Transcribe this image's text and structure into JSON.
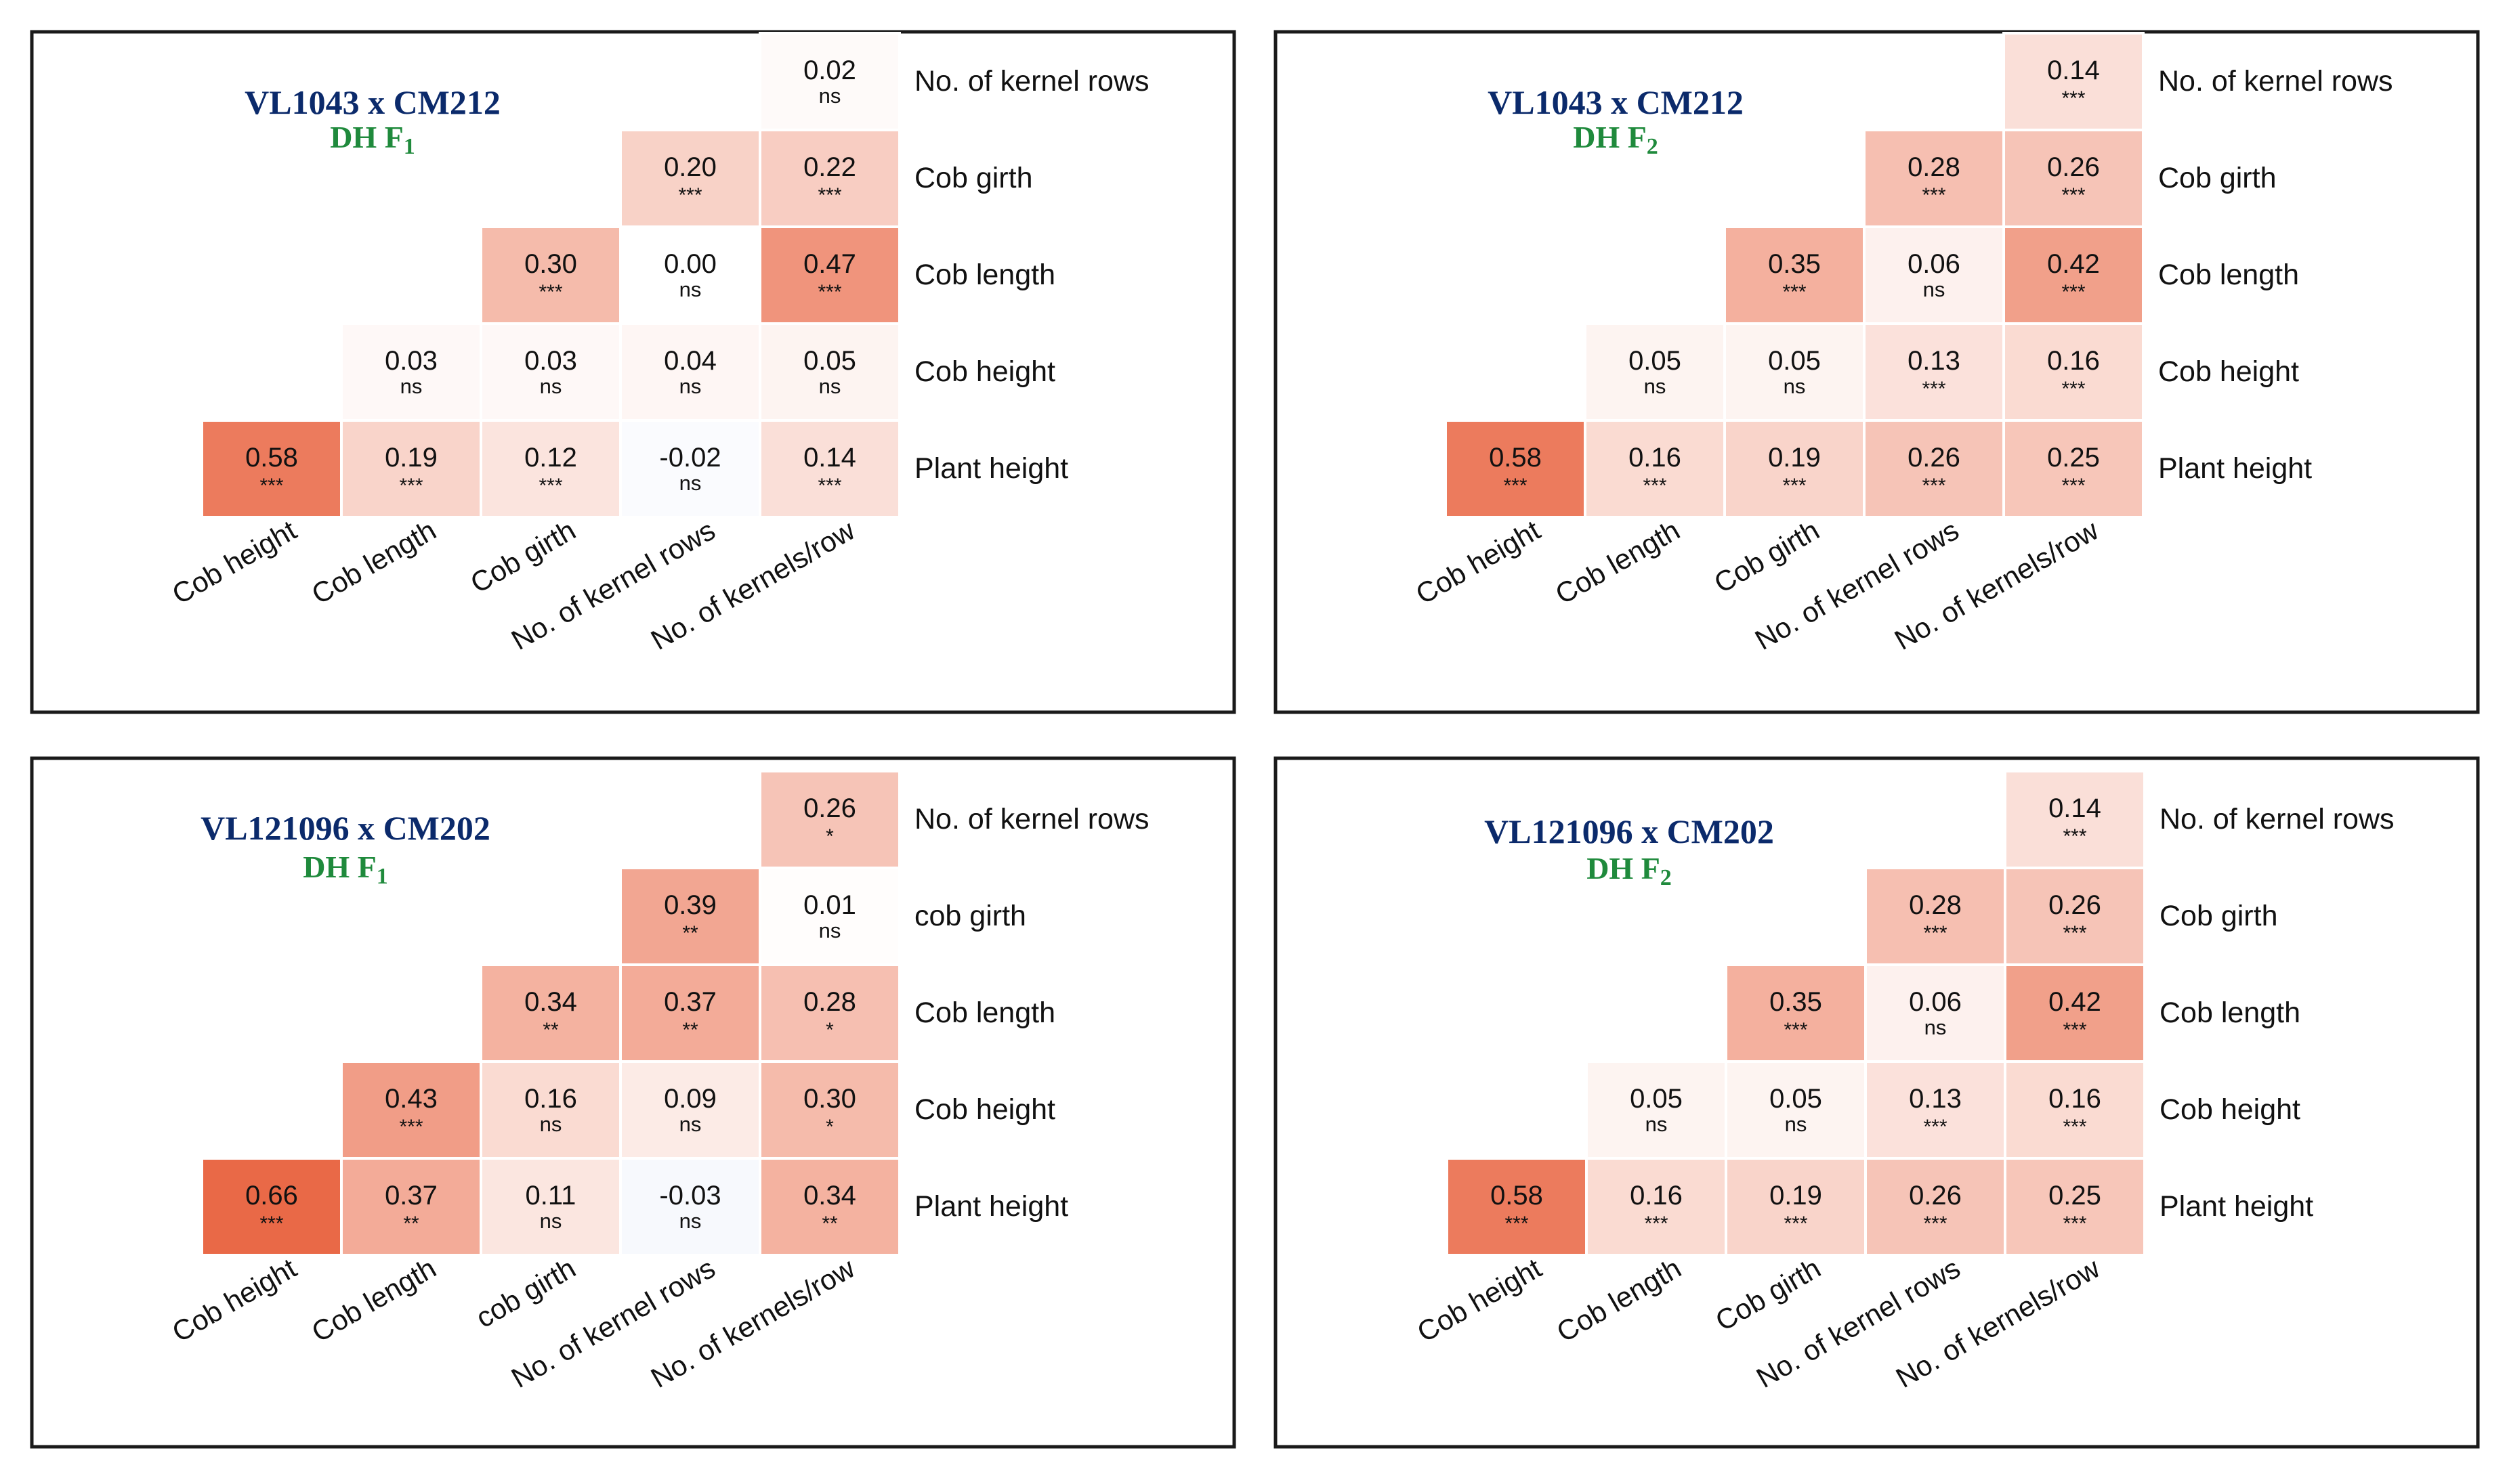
{
  "colors": {
    "title": "#0b2a6b",
    "subtitle": "#1f8a3c",
    "text": "#111111",
    "border": "#1a1a1a",
    "positive": "#e8603c",
    "negative": "#4a6fd1"
  },
  "chart_data": [
    {
      "type": "heatmap",
      "title": "VL1043 x CM212",
      "subtitle_main": "DH F",
      "subtitle_sub": "1",
      "row_labels": [
        "No. of kernel rows",
        "Cob girth",
        "Cob length",
        "Cob height",
        "Plant height"
      ],
      "col_labels": [
        "Cob height",
        "Cob length",
        "Cob girth",
        "No. of kernel rows",
        "No. of kernels/row"
      ],
      "values": [
        [
          null,
          null,
          null,
          null,
          0.02
        ],
        [
          null,
          null,
          null,
          0.2,
          0.22
        ],
        [
          null,
          null,
          0.3,
          0.0,
          0.47
        ],
        [
          null,
          0.03,
          0.03,
          0.04,
          0.05
        ],
        [
          0.58,
          0.19,
          0.12,
          -0.02,
          0.14
        ]
      ],
      "labels": [
        [
          null,
          null,
          null,
          null,
          "0.02"
        ],
        [
          null,
          null,
          null,
          "0.20",
          "0.22"
        ],
        [
          null,
          null,
          "0.30",
          "0.00",
          "0.47"
        ],
        [
          null,
          "0.03",
          "0.03",
          "0.04",
          "0.05"
        ],
        [
          "0.58",
          "0.19",
          "0.12",
          "-0.02",
          "0.14"
        ]
      ],
      "significance": [
        [
          null,
          null,
          null,
          null,
          "ns"
        ],
        [
          null,
          null,
          null,
          "***",
          "***"
        ],
        [
          null,
          null,
          "***",
          "ns",
          "***"
        ],
        [
          null,
          "ns",
          "ns",
          "ns",
          "ns"
        ],
        [
          "***",
          "***",
          "***",
          "ns",
          "***"
        ]
      ]
    },
    {
      "type": "heatmap",
      "title": "VL1043 x CM212",
      "subtitle_main": "DH F",
      "subtitle_sub": "2",
      "row_labels": [
        "No. of kernel rows",
        "Cob girth",
        "Cob length",
        "Cob height",
        "Plant height"
      ],
      "col_labels": [
        "Cob height",
        "Cob length",
        "Cob girth",
        "No. of kernel rows",
        "No. of kernels/row"
      ],
      "values": [
        [
          null,
          null,
          null,
          null,
          0.14
        ],
        [
          null,
          null,
          null,
          0.28,
          0.26
        ],
        [
          null,
          null,
          0.35,
          0.06,
          0.42
        ],
        [
          null,
          0.05,
          0.05,
          0.13,
          0.16
        ],
        [
          0.58,
          0.16,
          0.19,
          0.26,
          0.25
        ]
      ],
      "labels": [
        [
          null,
          null,
          null,
          null,
          "0.14"
        ],
        [
          null,
          null,
          null,
          "0.28",
          "0.26"
        ],
        [
          null,
          null,
          "0.35",
          "0.06",
          "0.42"
        ],
        [
          null,
          "0.05",
          "0.05",
          "0.13",
          "0.16"
        ],
        [
          "0.58",
          "0.16",
          "0.19",
          "0.26",
          "0.25"
        ]
      ],
      "significance": [
        [
          null,
          null,
          null,
          null,
          "***"
        ],
        [
          null,
          null,
          null,
          "***",
          "***"
        ],
        [
          null,
          null,
          "***",
          "ns",
          "***"
        ],
        [
          null,
          "ns",
          "ns",
          "***",
          "***"
        ],
        [
          "***",
          "***",
          "***",
          "***",
          "***"
        ]
      ]
    },
    {
      "type": "heatmap",
      "title": "VL121096 x CM202",
      "subtitle_main": "DH F",
      "subtitle_sub": "1",
      "row_labels": [
        "No. of kernel rows",
        "cob girth",
        "Cob length",
        "Cob height",
        "Plant height"
      ],
      "col_labels": [
        "Cob height",
        "Cob length",
        "cob girth",
        "No. of kernel rows",
        "No. of kernels/row"
      ],
      "values": [
        [
          null,
          null,
          null,
          null,
          0.26
        ],
        [
          null,
          null,
          null,
          0.39,
          0.01
        ],
        [
          null,
          null,
          0.34,
          0.37,
          0.28
        ],
        [
          null,
          0.43,
          0.16,
          0.09,
          0.3
        ],
        [
          0.66,
          0.37,
          0.11,
          -0.03,
          0.34
        ]
      ],
      "labels": [
        [
          null,
          null,
          null,
          null,
          "0.26"
        ],
        [
          null,
          null,
          null,
          "0.39",
          "0.01"
        ],
        [
          null,
          null,
          "0.34",
          "0.37",
          "0.28"
        ],
        [
          null,
          "0.43",
          "0.16",
          "0.09",
          "0.30"
        ],
        [
          "0.66",
          "0.37",
          "0.11",
          "-0.03",
          "0.34"
        ]
      ],
      "significance": [
        [
          null,
          null,
          null,
          null,
          "*"
        ],
        [
          null,
          null,
          null,
          "**",
          "ns"
        ],
        [
          null,
          null,
          "**",
          "**",
          "*"
        ],
        [
          null,
          "***",
          "ns",
          "ns",
          "*"
        ],
        [
          "***",
          "**",
          "ns",
          "ns",
          "**"
        ]
      ]
    },
    {
      "type": "heatmap",
      "title": "VL121096 x CM202",
      "subtitle_main": "DH F",
      "subtitle_sub": "2",
      "row_labels": [
        "No. of kernel rows",
        "Cob girth",
        "Cob length",
        "Cob height",
        "Plant height"
      ],
      "col_labels": [
        "Cob height",
        "Cob length",
        "Cob girth",
        "No. of kernel rows",
        "No. of kernels/row"
      ],
      "values": [
        [
          null,
          null,
          null,
          null,
          0.14
        ],
        [
          null,
          null,
          null,
          0.28,
          0.26
        ],
        [
          null,
          null,
          0.35,
          0.06,
          0.42
        ],
        [
          null,
          0.05,
          0.05,
          0.13,
          0.16
        ],
        [
          0.58,
          0.16,
          0.19,
          0.26,
          0.25
        ]
      ],
      "labels": [
        [
          null,
          null,
          null,
          null,
          "0.14"
        ],
        [
          null,
          null,
          null,
          "0.28",
          "0.26"
        ],
        [
          null,
          null,
          "0.35",
          "0.06",
          "0.42"
        ],
        [
          null,
          "0.05",
          "0.05",
          "0.13",
          "0.16"
        ],
        [
          "0.58",
          "0.16",
          "0.19",
          "0.26",
          "0.25"
        ]
      ],
      "significance": [
        [
          null,
          null,
          null,
          null,
          "***"
        ],
        [
          null,
          null,
          null,
          "***",
          "***"
        ],
        [
          null,
          null,
          "***",
          "ns",
          "***"
        ],
        [
          null,
          "ns",
          "ns",
          "***",
          "***"
        ],
        [
          "***",
          "***",
          "***",
          "***",
          "***"
        ]
      ]
    }
  ]
}
